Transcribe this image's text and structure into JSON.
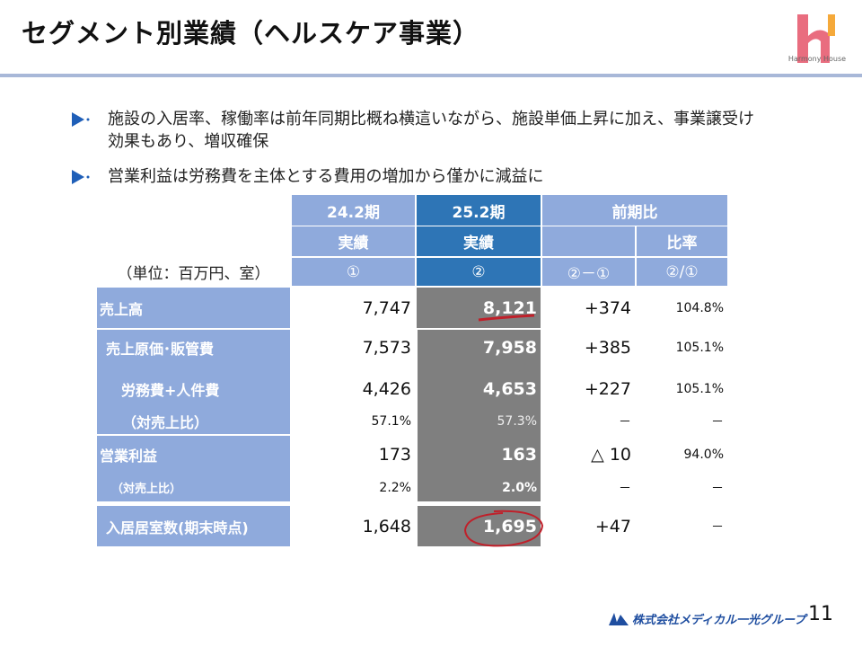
{
  "header": {
    "title": "セグメント別業績（ヘルスケア事業）",
    "logo_text": "Harmony House",
    "logo_colors": {
      "pink": "#e96d7f",
      "orange": "#f5a93a"
    }
  },
  "bullets": [
    {
      "text": "施設の入居率、稼働率は前年同期比概ね横這いながら、施設単価上昇に加え、事業譲受け効果もあり、増収確保"
    },
    {
      "text": "営業利益は労務費を主体とする費用の増加から僅かに減益に"
    }
  ],
  "table": {
    "unit_label": "（単位：百万円、室）",
    "headers": {
      "col1_period": "24.2期",
      "col1_sub": "実績",
      "col1_mark": "①",
      "col2_period": "25.2期",
      "col2_sub": "実績",
      "col2_mark": "②",
      "comp": "前期比",
      "comp_diff_mark": "②－①",
      "comp_ratio": "比率",
      "comp_ratio_mark": "②/①"
    },
    "rows": [
      {
        "label": "売上高",
        "prev": "7,747",
        "curr": "8,121",
        "diff": "+374",
        "ratio": "104.8%"
      },
      {
        "label": "売上原価･販管費",
        "prev": "7,573",
        "curr": "7,958",
        "diff": "+385",
        "ratio": "105.1%"
      },
      {
        "label": "労務費+人件費",
        "prev": "4,426",
        "curr": "4,653",
        "diff": "+227",
        "ratio": "105.1%"
      },
      {
        "label": "（対売上比）",
        "prev": "57.1%",
        "curr": "57.3%",
        "diff": "－",
        "ratio": "－"
      },
      {
        "label": "営業利益",
        "prev": "173",
        "curr": "163",
        "diff": "△ 10",
        "ratio": "94.0%"
      },
      {
        "label": "（対売上比）",
        "prev": "2.2%",
        "curr": "2.0%",
        "diff": "－",
        "ratio": "－"
      },
      {
        "label": "入居居室数(期末時点)",
        "prev": "1,648",
        "curr": "1,695",
        "diff": "+47",
        "ratio": "－"
      }
    ],
    "colors": {
      "header_light": "#8faadc",
      "header_dark": "#2e75b6",
      "highlight_grey": "#7f7f7f",
      "annotation_red": "#c0202a"
    }
  },
  "footer": {
    "company": "株式会社メディカル一光グループ",
    "page_number": "11"
  }
}
